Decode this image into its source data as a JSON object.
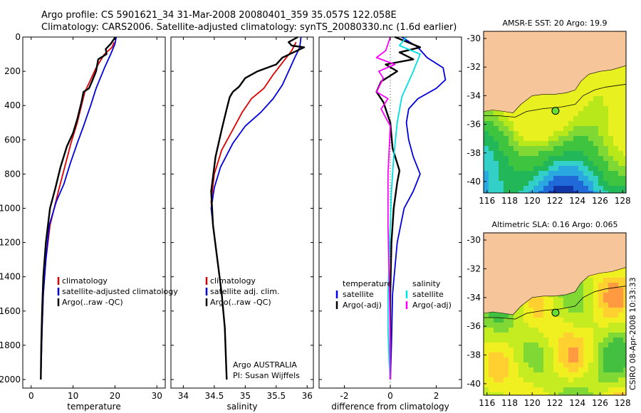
{
  "header": {
    "line1": "Argo profile: CS 5901621_34 31-Mar-2008 20080401_359 35.057S 122.058E",
    "line2": "Climatology: CARS2006. Satellite-adjusted climatology: synTS_20080330.nc (1.6d earlier)"
  },
  "side_stamp": "CSIRO 08-Apr-2008 10:33:33",
  "colors": {
    "climatology": "#e00000",
    "satellite": "#0000e0",
    "argo": "#000000",
    "salinity_satellite": "#00e0e0",
    "salinity_argo": "#ff00ff",
    "land": "#f7c59a",
    "float_marker": "#66dd33"
  },
  "chart_data": [
    {
      "id": "temperature",
      "type": "line",
      "xlabel": "temperature",
      "ylabel": "",
      "xlim": [
        -2,
        32
      ],
      "ylim": [
        2050,
        0
      ],
      "xticks": [
        "0",
        "10",
        "20",
        "30"
      ],
      "xtick_values": [
        0,
        10,
        20,
        30
      ],
      "yticks": [
        "0",
        "200",
        "400",
        "600",
        "800",
        "1000",
        "1200",
        "1400",
        "1600",
        "1800",
        "2000"
      ],
      "ytick_values": [
        0,
        200,
        400,
        600,
        800,
        1000,
        1200,
        1400,
        1600,
        1800,
        2000
      ],
      "legend": [
        "climatology",
        "satellite-adjusted climatology",
        "Argo(..raw -QC)"
      ],
      "series": [
        {
          "name": "climatology",
          "color": "#e00000",
          "x": [
            19.8,
            19.3,
            17.5,
            15.5,
            14.0,
            12.8,
            12.0,
            11.0,
            9.5,
            8.0,
            6.5,
            4.5,
            3.5,
            2.9,
            2.6,
            2.4,
            2.3
          ],
          "y": [
            30,
            60,
            100,
            180,
            260,
            320,
            400,
            500,
            620,
            760,
            900,
            1100,
            1300,
            1500,
            1700,
            1900,
            2000
          ]
        },
        {
          "name": "satellite-adjusted climatology",
          "color": "#0000e0",
          "x": [
            20.3,
            20.0,
            19.0,
            17.5,
            16.5,
            15.5,
            14.2,
            12.5,
            11.0,
            9.3,
            7.8,
            6.0,
            4.3,
            3.5,
            2.9,
            2.6,
            2.4,
            2.3
          ],
          "y": [
            0,
            40,
            100,
            180,
            240,
            300,
            400,
            520,
            620,
            740,
            860,
            960,
            1100,
            1300,
            1500,
            1700,
            1900,
            2000
          ]
        },
        {
          "name": "Argo(..raw -QC)",
          "color": "#000000",
          "x": [
            20.1,
            19.0,
            17.8,
            18.0,
            16.0,
            15.5,
            14.5,
            13.8,
            12.5,
            12.0,
            11.0,
            10.0,
            8.5,
            7.0,
            5.8,
            4.5,
            3.5,
            2.9,
            2.6,
            2.4,
            2.3
          ],
          "y": [
            0,
            40,
            70,
            100,
            130,
            200,
            260,
            300,
            320,
            380,
            480,
            560,
            640,
            760,
            880,
            1000,
            1200,
            1400,
            1600,
            1800,
            2000
          ]
        }
      ]
    },
    {
      "id": "salinity",
      "type": "line",
      "xlabel": "salinity",
      "ylabel": "",
      "xlim": [
        33.8,
        36.1
      ],
      "ylim": [
        2050,
        0
      ],
      "xticks": [
        "34",
        "34.5",
        "35",
        "35.5",
        "36"
      ],
      "xtick_values": [
        34,
        34.5,
        35,
        35.5,
        36
      ],
      "yticks": [],
      "ytick_values": [],
      "legend": [
        "climatology",
        "satellite adj. clim.",
        "Argo(..raw -QC)"
      ],
      "annotations": [
        "Argo AUSTRALIA",
        "PI: Susan Wijffels"
      ],
      "series": [
        {
          "name": "climatology",
          "color": "#e00000",
          "x": [
            35.82,
            35.75,
            35.6,
            35.45,
            35.3,
            35.1,
            34.95,
            34.8,
            34.62,
            34.5,
            34.45,
            34.48,
            34.55,
            34.62,
            34.67,
            34.69,
            34.7
          ],
          "y": [
            30,
            80,
            150,
            220,
            300,
            360,
            440,
            540,
            660,
            800,
            960,
            1100,
            1300,
            1500,
            1700,
            1900,
            2000
          ]
        },
        {
          "name": "satellite adj. clim.",
          "color": "#0000e0",
          "x": [
            35.9,
            35.88,
            35.8,
            35.7,
            35.6,
            35.45,
            35.25,
            35.0,
            34.8,
            34.6,
            34.5,
            34.45,
            34.48,
            34.55,
            34.62,
            34.67,
            34.69,
            34.7
          ],
          "y": [
            0,
            60,
            120,
            200,
            280,
            360,
            440,
            520,
            620,
            760,
            880,
            1000,
            1100,
            1300,
            1500,
            1700,
            1900,
            2000
          ]
        },
        {
          "name": "Argo(..raw -QC)",
          "color": "#000000",
          "x": [
            35.85,
            35.7,
            35.75,
            35.95,
            35.6,
            35.5,
            35.2,
            35.0,
            34.9,
            34.8,
            34.75,
            34.7,
            34.62,
            34.52,
            34.45,
            34.48,
            34.55,
            34.62,
            34.67,
            34.69,
            34.7
          ],
          "y": [
            0,
            30,
            50,
            60,
            120,
            160,
            200,
            240,
            290,
            320,
            350,
            420,
            540,
            700,
            900,
            1100,
            1300,
            1500,
            1700,
            1900,
            2000
          ]
        }
      ]
    },
    {
      "id": "difference",
      "type": "line",
      "xlabel": "difference from climatology",
      "ylabel": "",
      "xlim": [
        -3.1,
        3.1
      ],
      "ylim": [
        2050,
        0
      ],
      "xticks": [
        "-2",
        "0",
        "2"
      ],
      "xtick_values": [
        -2,
        0,
        2
      ],
      "yticks": [],
      "ytick_values": [],
      "legend_groups": [
        {
          "header": "temperature",
          "entries": [
            "satellite",
            "Argo(-adj)"
          ]
        },
        {
          "header": "salinity",
          "entries": [
            "satellite",
            "Argo(-adj)"
          ]
        }
      ],
      "series": [
        {
          "name": "temperature satellite",
          "color": "#0000e0",
          "x": [
            0.5,
            1.2,
            1.6,
            2.3,
            2.4,
            2.0,
            1.2,
            0.8,
            0.7,
            0.8,
            1.0,
            1.3,
            1.0,
            0.6,
            0.3,
            0.1,
            0.05,
            0.0
          ],
          "y": [
            0,
            60,
            120,
            180,
            250,
            300,
            360,
            420,
            500,
            600,
            700,
            800,
            900,
            1000,
            1200,
            1500,
            1800,
            2000
          ]
        },
        {
          "name": "temperature Argo(-adj)",
          "color": "#000000",
          "x": [
            0.2,
            1.3,
            0.4,
            1.0,
            -0.2,
            0.3,
            -0.4,
            -0.6,
            -0.3,
            0.0,
            0.1,
            0.4,
            0.3,
            0.15,
            0.05,
            0.0,
            0.0
          ],
          "y": [
            0,
            60,
            90,
            130,
            160,
            200,
            260,
            320,
            380,
            500,
            650,
            780,
            850,
            1000,
            1200,
            1500,
            2000
          ]
        },
        {
          "name": "salinity satellite",
          "color": "#00e0e0",
          "x": [
            0.7,
            0.4,
            1.3,
            1.0,
            0.5,
            0.3,
            0.15,
            0.05,
            0.0,
            -0.05,
            -0.1,
            -0.1,
            -0.05,
            0.0
          ],
          "y": [
            0,
            50,
            100,
            200,
            350,
            500,
            700,
            900,
            1100,
            1300,
            1500,
            1700,
            1900,
            2000
          ]
        },
        {
          "name": "salinity Argo(-adj)",
          "color": "#ff00ff",
          "x": [
            0.0,
            -0.2,
            -0.6,
            0.2,
            -0.5,
            -0.3,
            -0.6,
            -0.1,
            -0.4,
            0.0,
            -0.1,
            -0.1,
            -0.05,
            0.0,
            0.0
          ],
          "y": [
            0,
            80,
            120,
            160,
            200,
            240,
            320,
            360,
            420,
            520,
            800,
            1100,
            1400,
            1800,
            2000
          ]
        }
      ]
    },
    {
      "id": "sst_map",
      "type": "heatmap",
      "title": "AMSR-E SST: 20 Argo: 19.9",
      "xlim": [
        115.7,
        128.3
      ],
      "ylim": [
        -40.8,
        -29.5
      ],
      "xticks": [
        "116",
        "118",
        "120",
        "122",
        "124",
        "126",
        "128"
      ],
      "xtick_values": [
        116,
        118,
        120,
        122,
        124,
        126,
        128
      ],
      "yticks": [
        "-30",
        "-32",
        "-34",
        "-36",
        "-38",
        "-40"
      ],
      "ytick_values": [
        -30,
        -32,
        -34,
        -36,
        -38,
        -40
      ],
      "float_position": {
        "lon": 122.058,
        "lat": -35.057
      }
    },
    {
      "id": "sla_map",
      "type": "heatmap",
      "title": "Altimetric SLA: 0.16 Argo: 0.065",
      "xlim": [
        115.7,
        128.3
      ],
      "ylim": [
        -40.8,
        -29.5
      ],
      "xticks": [
        "116",
        "118",
        "120",
        "122",
        "124",
        "126",
        "128"
      ],
      "xtick_values": [
        116,
        118,
        120,
        122,
        124,
        126,
        128
      ],
      "yticks": [
        "-30",
        "-32",
        "-34",
        "-36",
        "-38",
        "-40"
      ],
      "ytick_values": [
        -30,
        -32,
        -34,
        -36,
        -38,
        -40
      ],
      "float_position": {
        "lon": 122.058,
        "lat": -35.057
      }
    }
  ]
}
